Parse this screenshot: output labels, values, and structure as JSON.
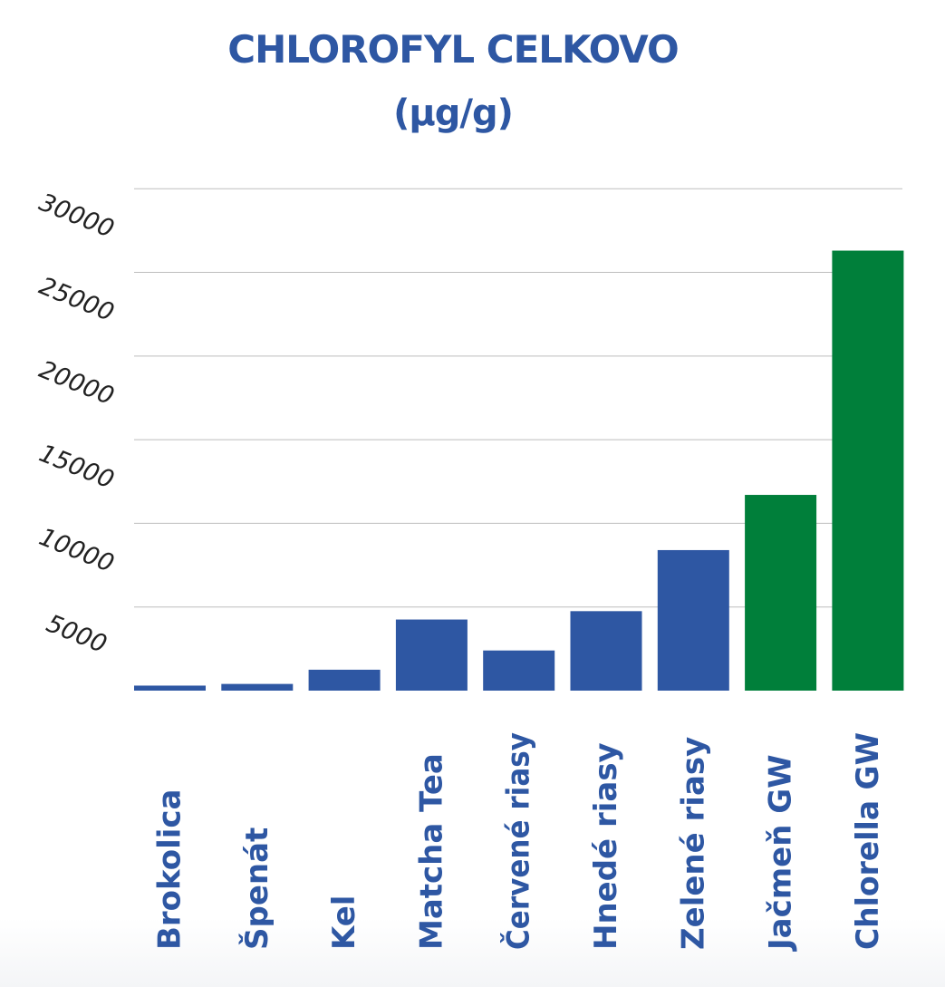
{
  "chart_data": {
    "type": "bar",
    "title": "CHLOROFYL CELKOVO",
    "subtitle": "(µg/g)",
    "xlabel": "",
    "ylabel": "",
    "categories": [
      "Brokolica",
      "Špenát",
      "Kel",
      "Matcha Tea",
      "Červené riasy",
      "Hnedé riasy",
      "Zelené riasy",
      "Jačmeň GW",
      "Chlorella GW"
    ],
    "values": [
      300,
      400,
      1250,
      4250,
      2400,
      4750,
      8400,
      11700,
      26300
    ],
    "bar_colors": [
      "#2e57a3",
      "#2e57a3",
      "#2e57a3",
      "#2e57a3",
      "#2e57a3",
      "#2e57a3",
      "#2e57a3",
      "#007f3a",
      "#007f3a"
    ],
    "yticks": [
      5000,
      10000,
      15000,
      20000,
      25000,
      30000
    ],
    "ytick_labels": [
      "5000",
      "10000",
      "15000",
      "20000",
      "25000",
      "30000"
    ],
    "ylim": [
      0,
      29200
    ],
    "grid": true,
    "legend": "none"
  },
  "colors": {
    "title": "#2e57a3",
    "grid": "#bdbdbd",
    "ytick_text": "#222222"
  }
}
